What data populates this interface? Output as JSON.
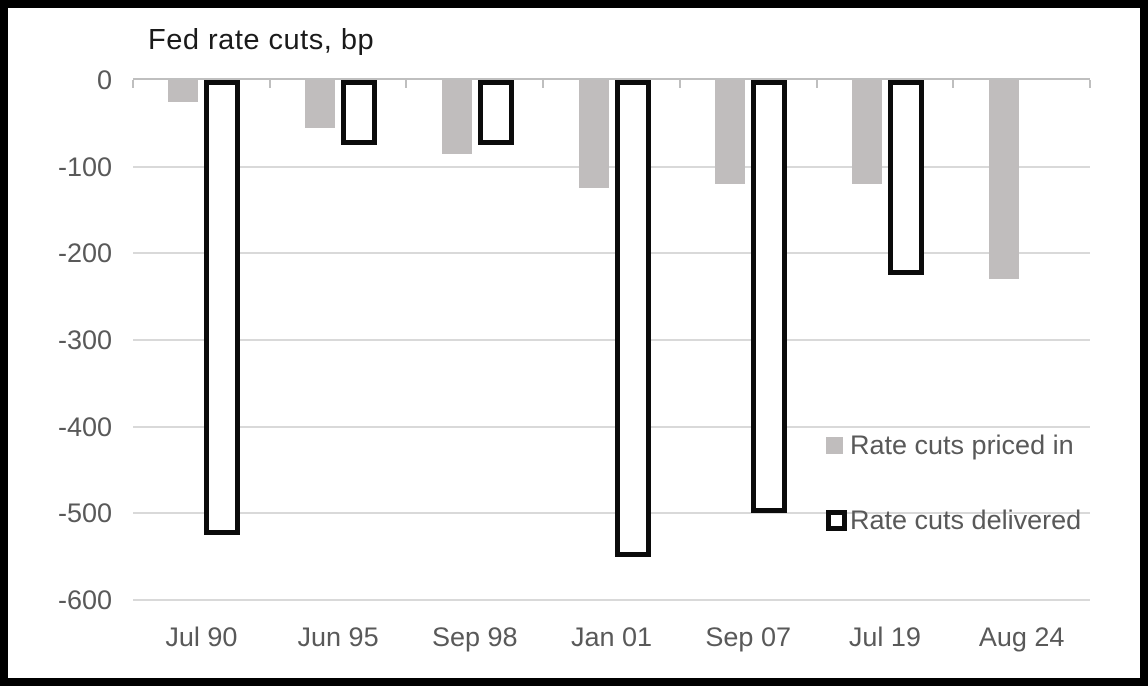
{
  "chart_data": {
    "type": "bar",
    "title": "Fed rate cuts, bp",
    "categories": [
      "Jul 90",
      "Jun 95",
      "Sep 98",
      "Jan 01",
      "Sep 07",
      "Jul 19",
      "Aug 24"
    ],
    "series": [
      {
        "name": "Rate cuts priced in",
        "values": [
          -25,
          -55,
          -85,
          -125,
          -120,
          -120,
          -230
        ]
      },
      {
        "name": "Rate cuts delivered",
        "values": [
          -525,
          -75,
          -75,
          -550,
          -500,
          -225,
          null
        ]
      }
    ],
    "ylim": [
      -600,
      0
    ],
    "yticks": [
      0,
      -100,
      -200,
      -300,
      -400,
      -500,
      -600
    ],
    "grid": "horizontal",
    "legend_position": "inside-right",
    "colors": {
      "priced_in_fill": "#c0bdbd",
      "delivered_fill": "#ffffff",
      "delivered_border": "#0b0b0b",
      "gridline": "#d9d9d9",
      "zero_axis": "#bfbfbf",
      "axis_text": "#595959",
      "title_text": "#1a1a1a",
      "frame": "#000000",
      "background": "#ffffff"
    }
  }
}
